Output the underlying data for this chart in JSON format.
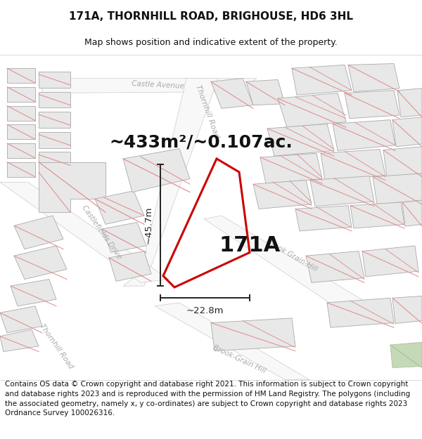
{
  "title_line1": "171A, THORNHILL ROAD, BRIGHOUSE, HD6 3HL",
  "title_line2": "Map shows position and indicative extent of the property.",
  "area_text": "~433m²/~0.107ac.",
  "label_171A": "171A",
  "dim_vertical": "~45.7m",
  "dim_horizontal": "~22.8m",
  "footer_text": "Contains OS data © Crown copyright and database right 2021. This information is subject to Crown copyright and database rights 2023 and is reproduced with the permission of HM Land Registry. The polygons (including the associated geometry, namely x, y co-ordinates) are subject to Crown copyright and database rights 2023 Ordnance Survey 100026316.",
  "bg_color": "#ffffff",
  "map_bg_color": "#ffffff",
  "property_outline_color": "#cc0000",
  "building_fill": "#e8e8e8",
  "building_edge": "#aaaaaa",
  "cadastral_color": "#e08888",
  "road_color": "#ffffff",
  "road_edge_color": "#cccccc",
  "dim_color": "#222222",
  "street_label_color": "#aaaaaa",
  "title_fontsize": 11,
  "subtitle_fontsize": 9,
  "area_fontsize": 18,
  "label_fontsize": 22,
  "footer_fontsize": 7.5
}
